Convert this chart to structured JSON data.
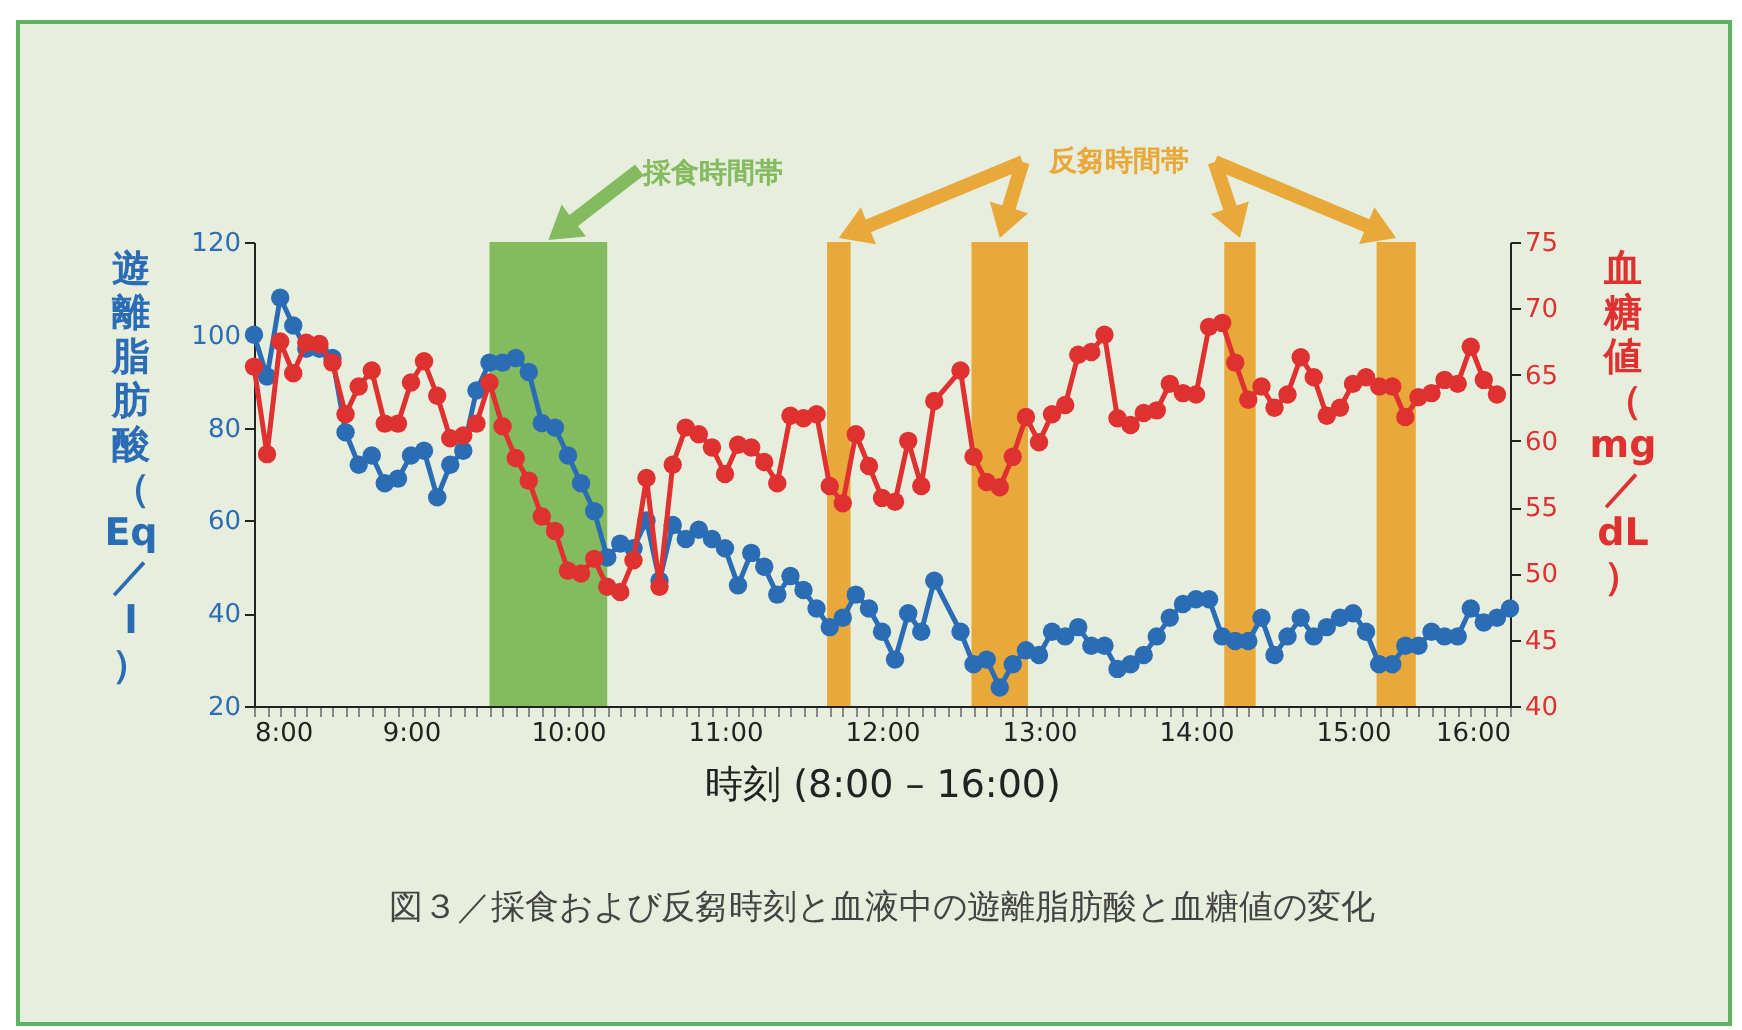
{
  "chart_data": {
    "type": "line",
    "title": "図３／採食および反芻時刻と血液中の遊離脂肪酸と血糖値の変化",
    "xlabel": "時刻 (8:00 – 16:00)",
    "ylabel": "遊離脂肪酸（Eq／l）",
    "y2label": "血糖値（mg／dL）",
    "marker": "circle",
    "x": [
      8,
      8.083,
      8.167,
      8.25,
      8.333,
      8.417,
      8.5,
      8.583,
      8.667,
      8.75,
      8.833,
      8.917,
      9,
      9.083,
      9.167,
      9.25,
      9.333,
      9.417,
      9.5,
      9.583,
      9.667,
      9.75,
      9.833,
      9.917,
      10,
      10.083,
      10.167,
      10.25,
      10.333,
      10.417,
      10.5,
      10.583,
      10.667,
      10.75,
      10.833,
      10.917,
      11,
      11.083,
      11.167,
      11.25,
      11.333,
      11.417,
      11.5,
      11.583,
      11.667,
      11.75,
      11.833,
      11.917,
      12,
      12.083,
      12.167,
      12.25,
      12.333,
      12.5,
      12.583,
      12.667,
      12.75,
      12.833,
      12.917,
      13,
      13.083,
      13.167,
      13.25,
      13.333,
      13.417,
      13.5,
      13.583,
      13.667,
      13.75,
      13.833,
      13.917,
      14,
      14.083,
      14.167,
      14.25,
      14.333,
      14.417,
      14.5,
      14.583,
      14.667,
      14.75,
      14.833,
      14.917,
      15,
      15.083,
      15.167,
      15.25,
      15.333,
      15.417,
      15.5,
      15.583,
      15.667,
      15.75,
      15.833,
      15.917,
      16
    ],
    "xlim": [
      8,
      16
    ],
    "xticks": [
      {
        "value": 8,
        "label": "8:00"
      },
      {
        "value": 8.083,
        "label": null
      },
      {
        "value": 8.167,
        "label": null
      },
      {
        "value": 8.25,
        "label": null
      },
      {
        "value": 8.333,
        "label": null
      },
      {
        "value": 8.417,
        "label": null
      },
      {
        "value": 8.5,
        "label": null
      },
      {
        "value": 8.583,
        "label": null
      },
      {
        "value": 8.667,
        "label": null
      },
      {
        "value": 8.75,
        "label": null
      },
      {
        "value": 8.833,
        "label": null
      },
      {
        "value": 8.917,
        "label": null
      },
      {
        "value": 9,
        "label": "9:00"
      },
      {
        "value": 9.083,
        "label": null
      },
      {
        "value": 9.167,
        "label": null
      },
      {
        "value": 9.25,
        "label": null
      },
      {
        "value": 9.333,
        "label": null
      },
      {
        "value": 9.417,
        "label": null
      },
      {
        "value": 9.5,
        "label": null
      },
      {
        "value": 9.583,
        "label": null
      },
      {
        "value": 9.667,
        "label": null
      },
      {
        "value": 9.75,
        "label": null
      },
      {
        "value": 9.833,
        "label": null
      },
      {
        "value": 9.917,
        "label": null
      },
      {
        "value": 10,
        "label": "10:00"
      },
      {
        "value": 10.083,
        "label": null
      },
      {
        "value": 10.167,
        "label": null
      },
      {
        "value": 10.25,
        "label": null
      },
      {
        "value": 10.333,
        "label": null
      },
      {
        "value": 10.417,
        "label": null
      },
      {
        "value": 10.5,
        "label": null
      },
      {
        "value": 10.583,
        "label": null
      },
      {
        "value": 10.667,
        "label": null
      },
      {
        "value": 10.75,
        "label": null
      },
      {
        "value": 10.833,
        "label": null
      },
      {
        "value": 10.917,
        "label": null
      },
      {
        "value": 11,
        "label": "11:00"
      },
      {
        "value": 11.083,
        "label": null
      },
      {
        "value": 11.167,
        "label": null
      },
      {
        "value": 11.25,
        "label": null
      },
      {
        "value": 11.333,
        "label": null
      },
      {
        "value": 11.417,
        "label": null
      },
      {
        "value": 11.5,
        "label": null
      },
      {
        "value": 11.583,
        "label": null
      },
      {
        "value": 11.667,
        "label": null
      },
      {
        "value": 11.75,
        "label": null
      },
      {
        "value": 11.833,
        "label": null
      },
      {
        "value": 11.917,
        "label": null
      },
      {
        "value": 12,
        "label": "12:00"
      },
      {
        "value": 12.083,
        "label": null
      },
      {
        "value": 12.167,
        "label": null
      },
      {
        "value": 12.25,
        "label": null
      },
      {
        "value": 12.333,
        "label": null
      },
      {
        "value": 12.417,
        "label": null
      },
      {
        "value": 12.5,
        "label": null
      },
      {
        "value": 12.583,
        "label": null
      },
      {
        "value": 12.667,
        "label": null
      },
      {
        "value": 12.75,
        "label": null
      },
      {
        "value": 12.833,
        "label": null
      },
      {
        "value": 12.917,
        "label": null
      },
      {
        "value": 13,
        "label": "13:00"
      },
      {
        "value": 13.083,
        "label": null
      },
      {
        "value": 13.167,
        "label": null
      },
      {
        "value": 13.25,
        "label": null
      },
      {
        "value": 13.333,
        "label": null
      },
      {
        "value": 13.417,
        "label": null
      },
      {
        "value": 13.5,
        "label": null
      },
      {
        "value": 13.583,
        "label": null
      },
      {
        "value": 13.667,
        "label": null
      },
      {
        "value": 13.75,
        "label": null
      },
      {
        "value": 13.833,
        "label": null
      },
      {
        "value": 13.917,
        "label": null
      },
      {
        "value": 14,
        "label": "14:00"
      },
      {
        "value": 14.083,
        "label": null
      },
      {
        "value": 14.167,
        "label": null
      },
      {
        "value": 14.25,
        "label": null
      },
      {
        "value": 14.333,
        "label": null
      },
      {
        "value": 14.417,
        "label": null
      },
      {
        "value": 14.5,
        "label": null
      },
      {
        "value": 14.583,
        "label": null
      },
      {
        "value": 14.667,
        "label": null
      },
      {
        "value": 14.75,
        "label": null
      },
      {
        "value": 14.833,
        "label": null
      },
      {
        "value": 14.917,
        "label": null
      },
      {
        "value": 15,
        "label": "15:00"
      },
      {
        "value": 15.083,
        "label": null
      },
      {
        "value": 15.167,
        "label": null
      },
      {
        "value": 15.25,
        "label": null
      },
      {
        "value": 15.333,
        "label": null
      },
      {
        "value": 15.417,
        "label": null
      },
      {
        "value": 15.5,
        "label": null
      },
      {
        "value": 15.583,
        "label": null
      },
      {
        "value": 15.667,
        "label": null
      },
      {
        "value": 15.75,
        "label": null
      },
      {
        "value": 15.833,
        "label": null
      },
      {
        "value": 15.917,
        "label": null
      },
      {
        "value": 16,
        "label": "16:00"
      }
    ],
    "ylim": [
      20,
      120
    ],
    "yticks": [
      20,
      40,
      60,
      80,
      100,
      120
    ],
    "y2lim": [
      40,
      75
    ],
    "y2ticks": [
      40,
      45,
      50,
      55,
      60,
      65,
      70,
      75
    ],
    "series": [
      {
        "color": "#2a6db5",
        "values": [
          100,
          91,
          108,
          102,
          97,
          97,
          95,
          79,
          72,
          74,
          68,
          69,
          74,
          75,
          65,
          72,
          75,
          88,
          94,
          94,
          95,
          92,
          81,
          80,
          74,
          68,
          62,
          52,
          55,
          54,
          60,
          47,
          59,
          56,
          58,
          56,
          54,
          46,
          53,
          50,
          44,
          48,
          45,
          41,
          37,
          39,
          44,
          41,
          36,
          30,
          40,
          36,
          47,
          36,
          29,
          30,
          24,
          29,
          32,
          31,
          36,
          35,
          37,
          33,
          33,
          28,
          29,
          31,
          35,
          39,
          42,
          43,
          43,
          35,
          34,
          34,
          39,
          31,
          35,
          39,
          35,
          37,
          39,
          40,
          36,
          29,
          29,
          33,
          33,
          36,
          35,
          35,
          41,
          38,
          39,
          41
        ]
      },
      {
        "color": "#e03131",
        "axis": "y2",
        "values": [
          65.6,
          59,
          67.5,
          65.1,
          67.4,
          67.3,
          65.9,
          62,
          64.1,
          65.3,
          61.3,
          61.3,
          64.4,
          66,
          63.4,
          60.2,
          60.4,
          61.3,
          64.4,
          61.1,
          58.7,
          57,
          54.3,
          53.2,
          50.2,
          50,
          51.1,
          49,
          48.6,
          51,
          57.2,
          49,
          58.2,
          61,
          60.5,
          59.5,
          57.5,
          59.7,
          59.5,
          58.4,
          56.8,
          61.9,
          61.7,
          62,
          56.6,
          55.3,
          60.5,
          58.1,
          55.7,
          55.4,
          60,
          56.6,
          63,
          65.3,
          58.8,
          56.9,
          56.5,
          58.8,
          61.8,
          59.9,
          62,
          62.7,
          66.5,
          66.7,
          68,
          61.7,
          61.2,
          62.1,
          62.3,
          64.3,
          63.6,
          63.5,
          68.6,
          68.9,
          65.9,
          63.1,
          64.1,
          62.5,
          63.5,
          66.3,
          64.8,
          61.9,
          62.5,
          64.3,
          64.8,
          64.1,
          64.1,
          61.8,
          63.3,
          63.6,
          64.6,
          64.3,
          67.1,
          64.6,
          63.5,
          null
        ]
      }
    ],
    "bands": [
      {
        "axis": "x",
        "from": 9.5,
        "to": 10.25,
        "label": "採食時間帯",
        "color": "#84bb5f"
      },
      {
        "axis": "x",
        "from": 11.65,
        "to": 11.8,
        "label": "反芻時間帯",
        "color": "#e8a93a"
      },
      {
        "axis": "x",
        "from": 12.57,
        "to": 12.93,
        "color": "#e8a93a"
      },
      {
        "axis": "x",
        "from": 14.18,
        "to": 14.38,
        "color": "#e8a93a"
      },
      {
        "axis": "x",
        "from": 15.15,
        "to": 15.4,
        "color": "#e8a93a"
      }
    ]
  }
}
